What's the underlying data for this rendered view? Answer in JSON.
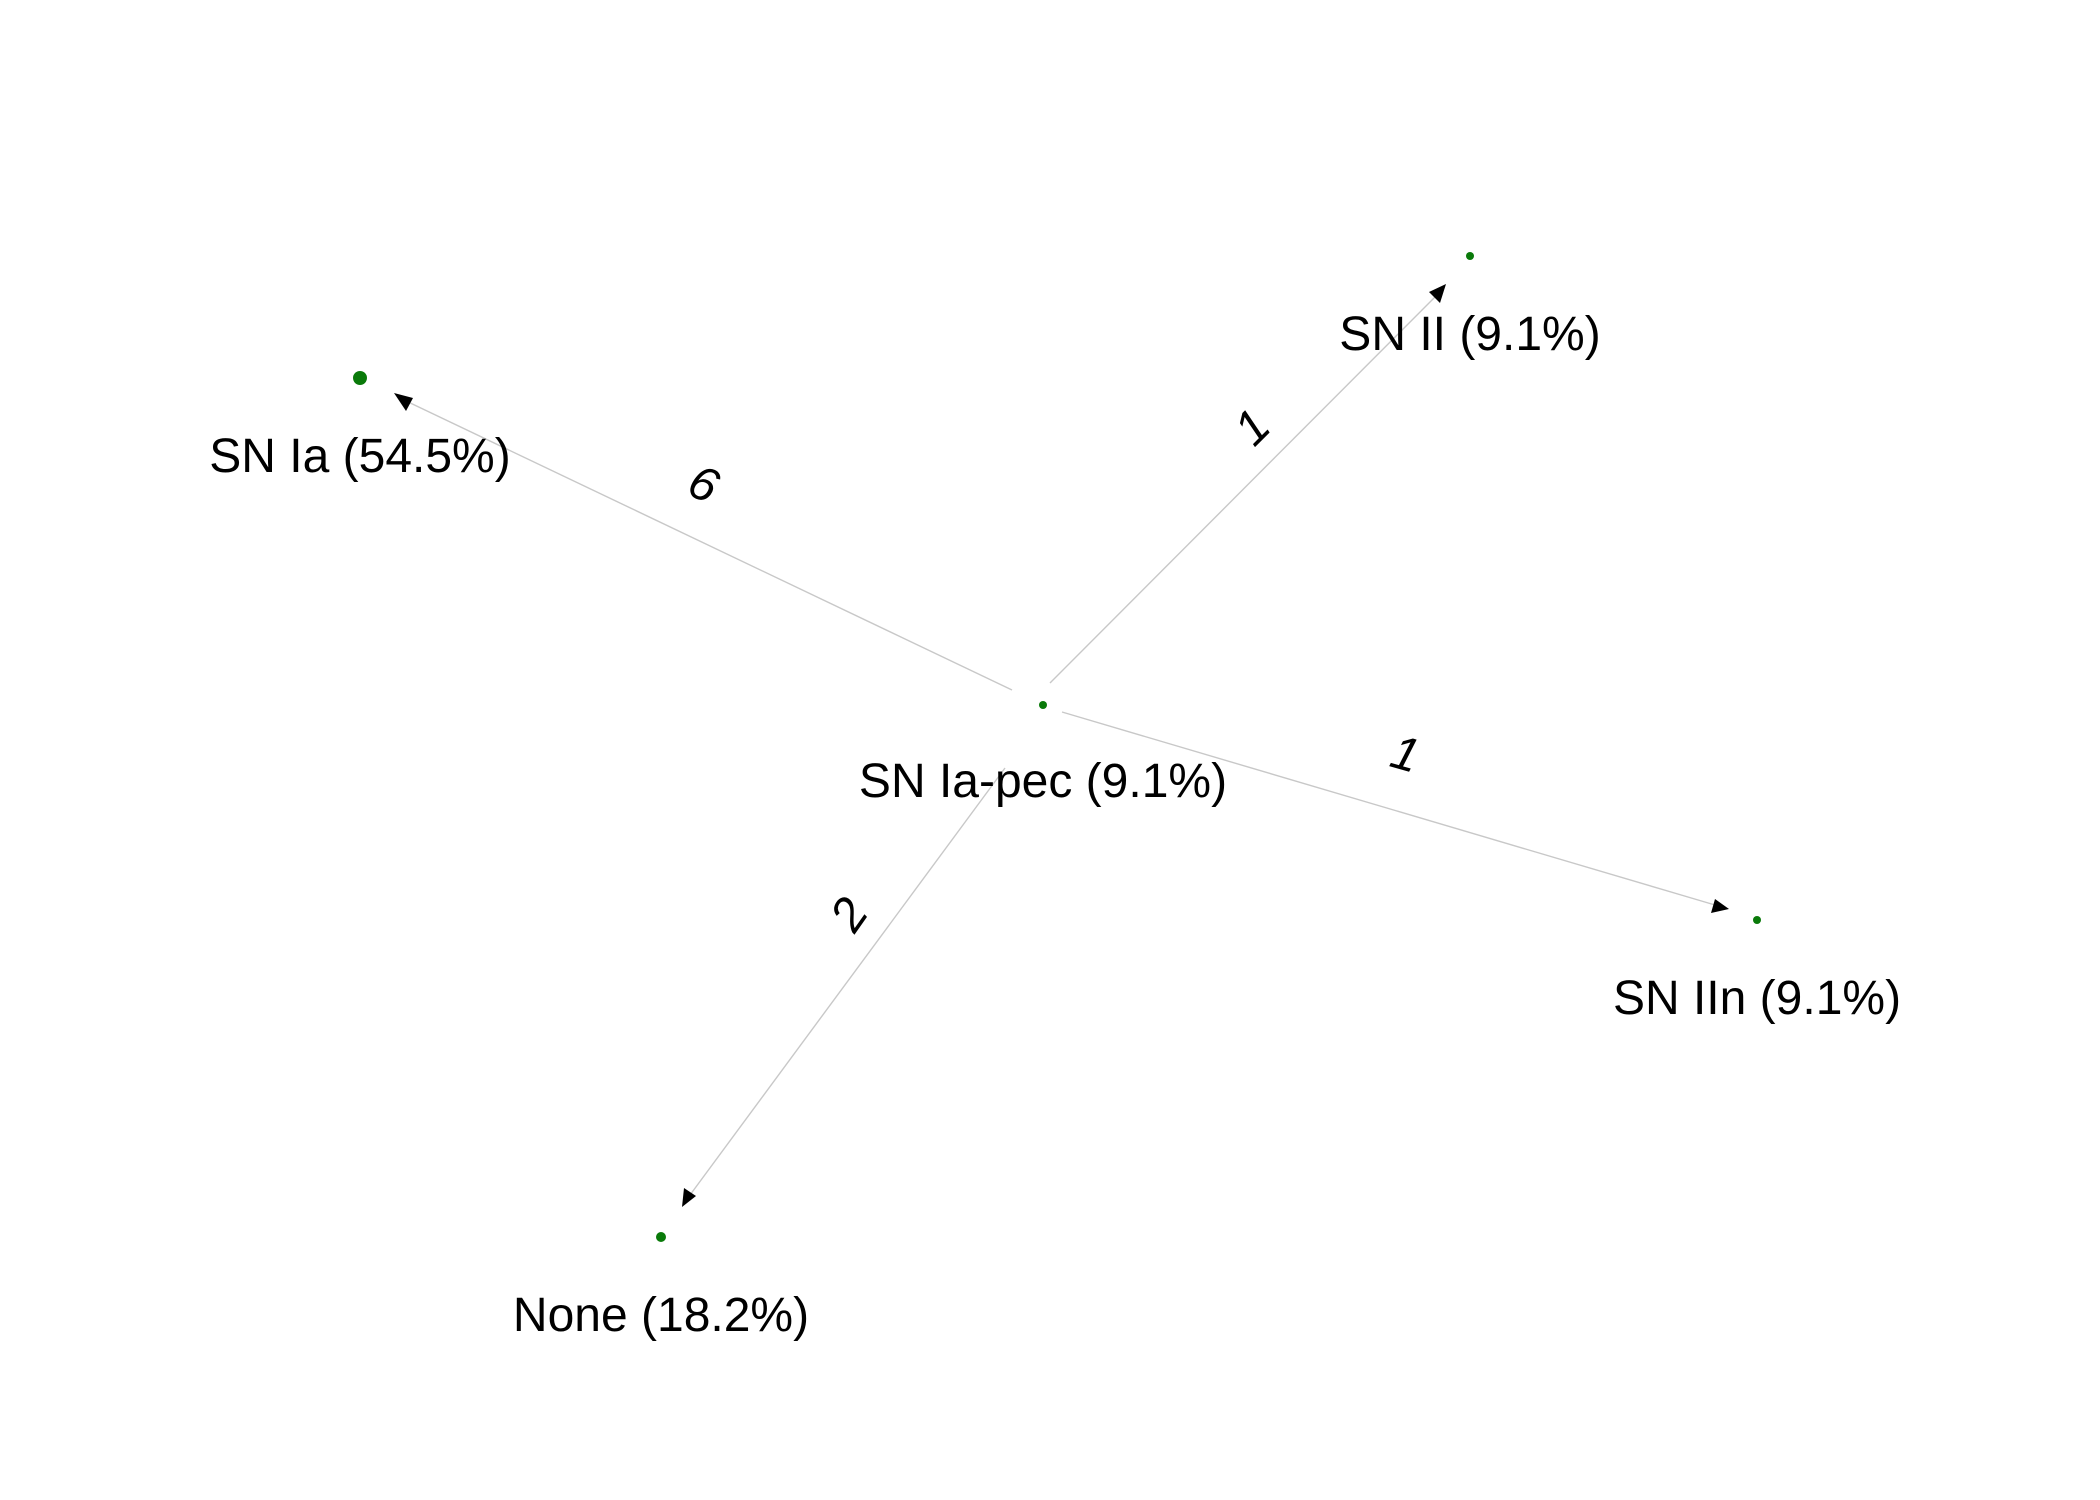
{
  "graph": {
    "node_color": "#0a7a0a",
    "edge_color": "#c8c8c8",
    "arrow_color": "#000000",
    "nodes": [
      {
        "id": "center",
        "label": "SN Ia-pec (9.1%)"
      },
      {
        "id": "ia",
        "label": "SN Ia (54.5%)"
      },
      {
        "id": "ii",
        "label": "SN II (9.1%)"
      },
      {
        "id": "iin",
        "label": "SN IIn (9.1%)"
      },
      {
        "id": "none",
        "label": "None (18.2%)"
      }
    ],
    "edges": [
      {
        "from": "center",
        "to": "ia",
        "weight": "6"
      },
      {
        "from": "center",
        "to": "ii",
        "weight": "1"
      },
      {
        "from": "center",
        "to": "iin",
        "weight": "1"
      },
      {
        "from": "center",
        "to": "none",
        "weight": "2"
      }
    ]
  }
}
